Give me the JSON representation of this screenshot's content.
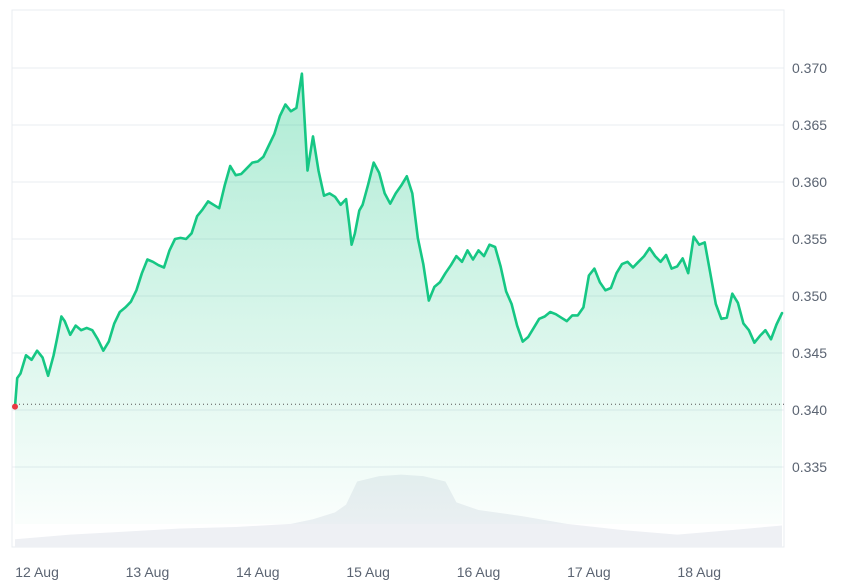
{
  "chart_data": {
    "type": "area",
    "title": "",
    "xlabel": "",
    "ylabel": "",
    "ylim": [
      0.33,
      0.373
    ],
    "y_ticks": [
      "0.370",
      "0.365",
      "0.360",
      "0.355",
      "0.350",
      "0.345",
      "0.340",
      "0.335"
    ],
    "y_tick_values": [
      0.37,
      0.365,
      0.36,
      0.355,
      0.35,
      0.345,
      0.34,
      0.335
    ],
    "x_ticks": [
      "12 Aug",
      "13 Aug",
      "14 Aug",
      "15 Aug",
      "16 Aug",
      "17 Aug",
      "18 Aug"
    ],
    "x_tick_days": [
      0.2,
      1.2,
      2.2,
      3.2,
      4.2,
      5.2,
      6.2
    ],
    "x_range_days": [
      0,
      6.95
    ],
    "reference_price": 0.3405,
    "grid": true,
    "colors": {
      "line": "#16c784",
      "start_dot": "#ea3943",
      "volume": "#eef0f4",
      "grid": "#e9ecf1"
    },
    "price": {
      "x": [
        0,
        0.02,
        0.05,
        0.1,
        0.15,
        0.2,
        0.25,
        0.3,
        0.35,
        0.38,
        0.42,
        0.45,
        0.5,
        0.55,
        0.6,
        0.65,
        0.7,
        0.75,
        0.8,
        0.85,
        0.9,
        0.95,
        1.0,
        1.05,
        1.1,
        1.15,
        1.2,
        1.25,
        1.3,
        1.35,
        1.4,
        1.45,
        1.5,
        1.55,
        1.6,
        1.65,
        1.7,
        1.75,
        1.8,
        1.85,
        1.9,
        1.95,
        2.0,
        2.05,
        2.1,
        2.15,
        2.2,
        2.25,
        2.3,
        2.35,
        2.4,
        2.45,
        2.5,
        2.55,
        2.6,
        2.65,
        2.7,
        2.75,
        2.8,
        2.85,
        2.9,
        2.95,
        3.0,
        3.03,
        3.05,
        3.08,
        3.12,
        3.15,
        3.2,
        3.25,
        3.3,
        3.35,
        3.4,
        3.45,
        3.5,
        3.55,
        3.6,
        3.65,
        3.7,
        3.75,
        3.8,
        3.85,
        3.9,
        3.95,
        4.0,
        4.05,
        4.1,
        4.15,
        4.2,
        4.25,
        4.3,
        4.35,
        4.4,
        4.45,
        4.5,
        4.55,
        4.6,
        4.65,
        4.7,
        4.75,
        4.8,
        4.85,
        4.9,
        4.95,
        5.0,
        5.05,
        5.1,
        5.15,
        5.2,
        5.25,
        5.3,
        5.35,
        5.4,
        5.45,
        5.5,
        5.55,
        5.6,
        5.65,
        5.7,
        5.75,
        5.8,
        5.85,
        5.9,
        5.95,
        6.0,
        6.05,
        6.1,
        6.15,
        6.2,
        6.25,
        6.3,
        6.35,
        6.4,
        6.45,
        6.5,
        6.55,
        6.6,
        6.65,
        6.7,
        6.75,
        6.8,
        6.85,
        6.9,
        6.95
      ],
      "y": [
        0.3403,
        0.3428,
        0.3432,
        0.3448,
        0.3444,
        0.3452,
        0.3446,
        0.343,
        0.3448,
        0.3462,
        0.3482,
        0.3478,
        0.3466,
        0.3474,
        0.347,
        0.3472,
        0.347,
        0.3462,
        0.3452,
        0.346,
        0.3476,
        0.3486,
        0.349,
        0.3495,
        0.3505,
        0.352,
        0.3532,
        0.353,
        0.3527,
        0.3525,
        0.354,
        0.355,
        0.3551,
        0.355,
        0.3555,
        0.357,
        0.3576,
        0.3583,
        0.358,
        0.3577,
        0.3597,
        0.3614,
        0.3606,
        0.3607,
        0.3612,
        0.3617,
        0.3618,
        0.3622,
        0.3632,
        0.3642,
        0.3658,
        0.3668,
        0.3662,
        0.3665,
        0.3695,
        0.361,
        0.364,
        0.361,
        0.3588,
        0.359,
        0.3587,
        0.358,
        0.3585,
        0.3562,
        0.3545,
        0.3555,
        0.3575,
        0.358,
        0.3598,
        0.3617,
        0.3608,
        0.359,
        0.3581,
        0.359,
        0.3597,
        0.3605,
        0.359,
        0.3551,
        0.3528,
        0.3496,
        0.3508,
        0.3512,
        0.352,
        0.3527,
        0.3535,
        0.353,
        0.354,
        0.3532,
        0.354,
        0.3535,
        0.3545,
        0.3543,
        0.3526,
        0.3504,
        0.3493,
        0.3474,
        0.346,
        0.3464,
        0.3472,
        0.348,
        0.3482,
        0.3486,
        0.3484,
        0.3481,
        0.3478,
        0.3483,
        0.3483,
        0.349,
        0.3518,
        0.3524,
        0.3512,
        0.3505,
        0.3507,
        0.352,
        0.3528,
        0.353,
        0.3525,
        0.353,
        0.3535,
        0.3542,
        0.3535,
        0.353,
        0.3536,
        0.3524,
        0.3526,
        0.3533,
        0.352,
        0.3552,
        0.3545,
        0.3547,
        0.352,
        0.3493,
        0.348,
        0.3481,
        0.3502,
        0.3494,
        0.3476,
        0.347,
        0.3459,
        0.3465,
        0.347,
        0.3462,
        0.3475,
        0.3485
      ]
    },
    "volume": {
      "x": [
        0,
        0.5,
        1.0,
        1.5,
        2.0,
        2.5,
        2.7,
        2.9,
        3.0,
        3.1,
        3.3,
        3.5,
        3.7,
        3.9,
        4.0,
        4.2,
        4.6,
        5.0,
        5.5,
        6.0,
        6.5,
        6.95
      ],
      "level": [
        0.1,
        0.16,
        0.2,
        0.24,
        0.26,
        0.3,
        0.36,
        0.45,
        0.55,
        0.85,
        0.92,
        0.94,
        0.92,
        0.85,
        0.58,
        0.48,
        0.4,
        0.3,
        0.22,
        0.16,
        0.22,
        0.28
      ]
    }
  }
}
